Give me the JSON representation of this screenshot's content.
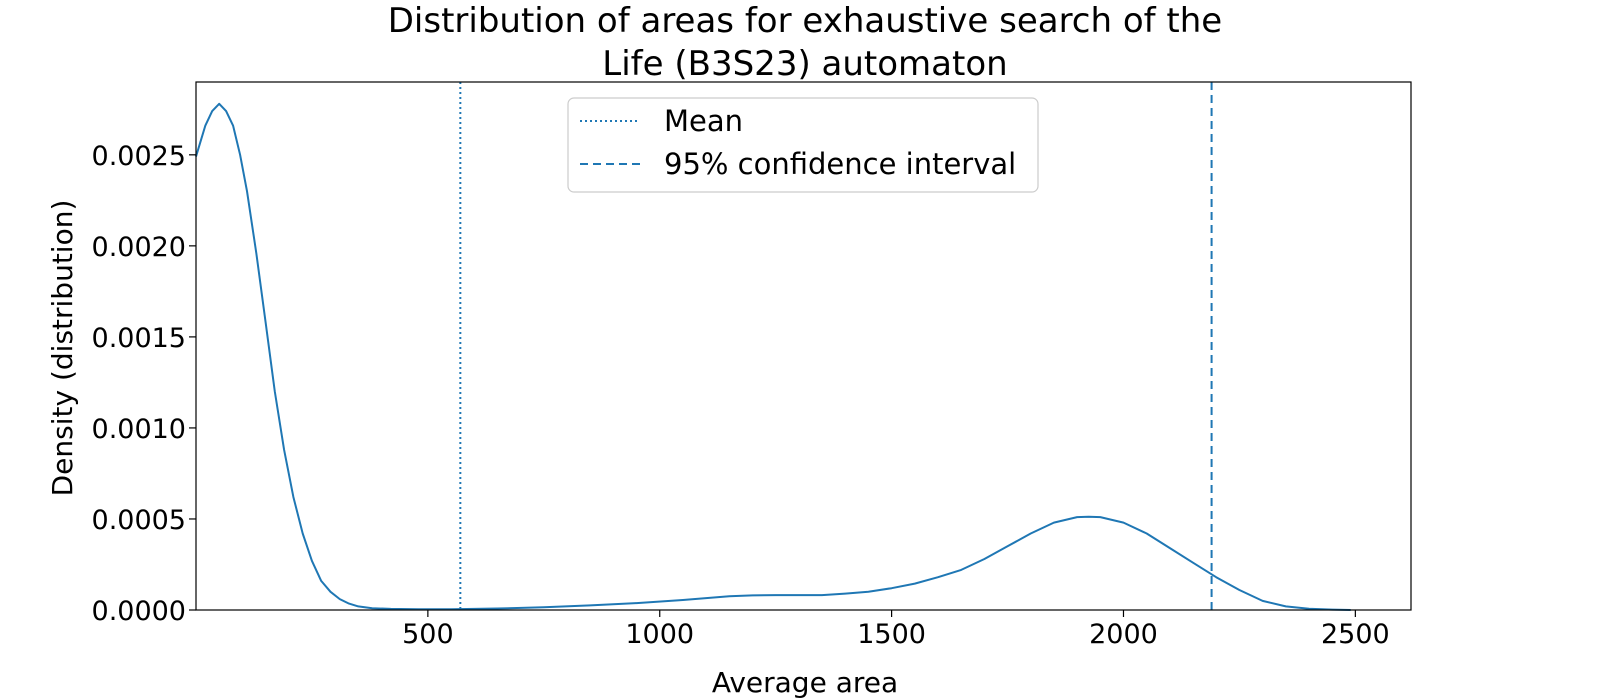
{
  "chart_data": {
    "type": "line",
    "title": "Distribution of areas for exhaustive search of the Life (B3S23) automaton",
    "title_lines": [
      "Distribution of areas for exhaustive search of the",
      "Life (B3S23) automaton"
    ],
    "xlabel": "Average area",
    "ylabel": "Density (distribution)",
    "xlim": [
      0,
      2620
    ],
    "ylim": [
      0,
      0.0029
    ],
    "x_ticks": [
      500,
      1000,
      1500,
      2000,
      2500
    ],
    "x_tick_labels": [
      "500",
      "1000",
      "1500",
      "2000",
      "2500"
    ],
    "y_ticks": [
      0,
      0.0005,
      0.001,
      0.0015,
      0.002,
      0.0025
    ],
    "y_tick_labels": [
      "0.0000",
      "0.0005",
      "0.0010",
      "0.0015",
      "0.0020",
      "0.0025"
    ],
    "grid": false,
    "legend_position": "top-center",
    "series": [
      {
        "name": "",
        "color": "#1f77b4",
        "x": [
          0,
          20,
          35,
          50,
          65,
          80,
          95,
          110,
          130,
          150,
          170,
          190,
          210,
          230,
          250,
          270,
          290,
          310,
          330,
          350,
          380,
          420,
          480,
          550,
          650,
          750,
          850,
          950,
          1050,
          1150,
          1200,
          1250,
          1300,
          1350,
          1400,
          1450,
          1500,
          1550,
          1600,
          1650,
          1700,
          1750,
          1800,
          1850,
          1900,
          1925,
          1950,
          2000,
          2050,
          2100,
          2150,
          2200,
          2250,
          2300,
          2350,
          2400,
          2450,
          2490
        ],
        "y": [
          0.00249,
          0.00266,
          0.00274,
          0.00278,
          0.00274,
          0.00266,
          0.0025,
          0.0023,
          0.00196,
          0.00158,
          0.0012,
          0.00088,
          0.00062,
          0.00042,
          0.00027,
          0.00016,
          0.0001,
          6e-05,
          3.5e-05,
          2e-05,
          1e-05,
          6e-06,
          4e-06,
          4e-06,
          8e-06,
          1.5e-05,
          2.5e-05,
          3.8e-05,
          5.5e-05,
          7.5e-05,
          8e-05,
          8.2e-05,
          8.2e-05,
          8.2e-05,
          9e-05,
          0.0001,
          0.00012,
          0.000145,
          0.00018,
          0.00022,
          0.00028,
          0.00035,
          0.00042,
          0.00048,
          0.00051,
          0.000512,
          0.00051,
          0.00048,
          0.00042,
          0.00034,
          0.00026,
          0.00018,
          0.00011,
          5e-05,
          2e-05,
          7e-06,
          2e-06,
          0.0
        ]
      }
    ],
    "annotations": [
      {
        "name": "Mean",
        "type": "vline",
        "x": 570,
        "style": "dotted",
        "color": "#1f77b4"
      },
      {
        "name": "95% confidence interval",
        "type": "vline",
        "x": 2190,
        "style": "dashed",
        "color": "#1f77b4"
      }
    ],
    "legend_entries": [
      {
        "label": "Mean",
        "style": "dotted",
        "color": "#1f77b4"
      },
      {
        "label": "95% confidence interval",
        "style": "dashed",
        "color": "#1f77b4"
      }
    ]
  }
}
